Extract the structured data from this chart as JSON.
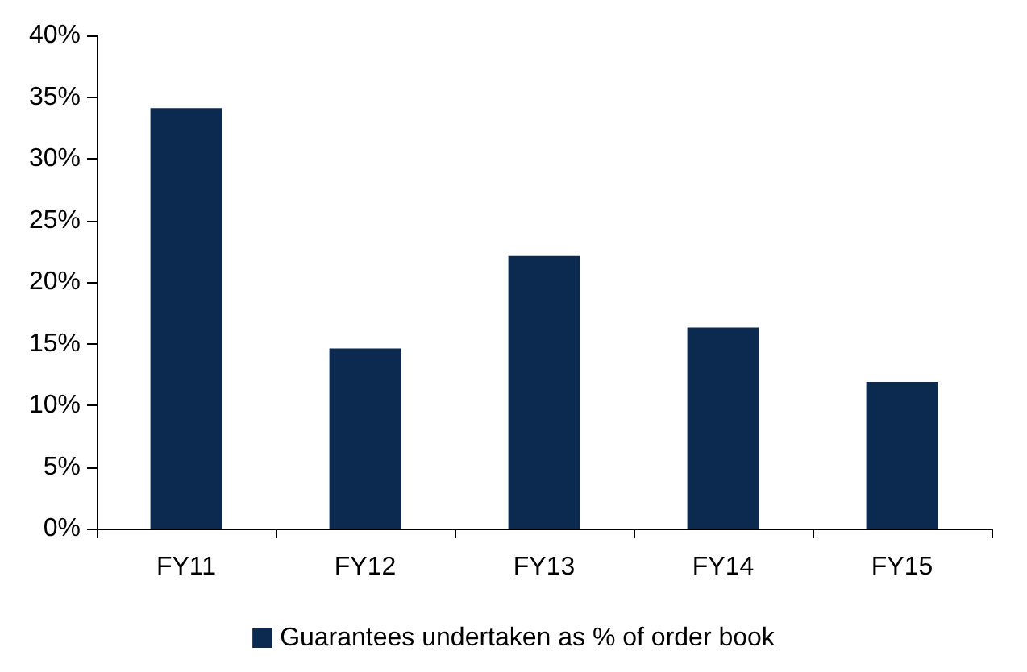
{
  "chart_data": {
    "type": "bar",
    "categories": [
      "FY11",
      "FY12",
      "FY13",
      "FY14",
      "FY15"
    ],
    "series": [
      {
        "name": "Guarantees undertaken as % of order book",
        "color": "#0c2a50",
        "values": [
          34.1,
          14.6,
          22.1,
          16.3,
          11.9
        ]
      }
    ],
    "ylim": [
      0,
      40
    ],
    "yticks": [
      {
        "value": 0,
        "label": "0%"
      },
      {
        "value": 5,
        "label": "5%"
      },
      {
        "value": 10,
        "label": "10%"
      },
      {
        "value": 15,
        "label": "15%"
      },
      {
        "value": 20,
        "label": "20%"
      },
      {
        "value": 25,
        "label": "25%"
      },
      {
        "value": 30,
        "label": "30%"
      },
      {
        "value": 35,
        "label": "35%"
      },
      {
        "value": 40,
        "label": "40%"
      }
    ],
    "grid": false,
    "legend": "bottom"
  }
}
